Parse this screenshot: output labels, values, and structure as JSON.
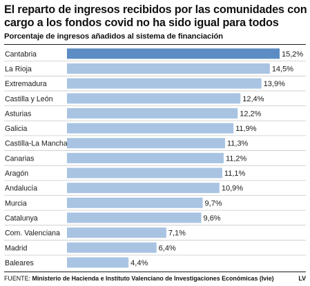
{
  "title": "El reparto de ingresos recibidos por las comunidades con cargo a los fondos covid no ha sido igual para todos",
  "subtitle": "Porcentaje de ingresos añadidos al sistema de financiación",
  "footer": {
    "source_label": "FUENTE:",
    "source_text": "Ministerio de Hacienda e Instituto Valenciano de Investigaciones Económicas (Ivie)",
    "credit": "LV"
  },
  "colors": {
    "highlight_bar": "#5b8cc3",
    "bar": "#a9c4e2",
    "row_line": "#c8c8c8"
  },
  "chart_data": {
    "type": "bar",
    "orientation": "horizontal",
    "categories": [
      "Cantabria",
      "La Rioja",
      "Extremadura",
      "Castilla y León",
      "Asturias",
      "Galicia",
      "Castilla-La Mancha",
      "Canarias",
      "Aragón",
      "Andalucía",
      "Murcia",
      "Catalunya",
      "Com. Valenciana",
      "Madrid",
      "Baleares"
    ],
    "values": [
      15.2,
      14.5,
      13.9,
      12.4,
      12.2,
      11.9,
      11.3,
      11.2,
      11.1,
      10.9,
      9.7,
      9.6,
      7.1,
      6.4,
      4.4
    ],
    "value_labels": [
      "15,2%",
      "14,5%",
      "13,9%",
      "12,4%",
      "12,2%",
      "11,9%",
      "11,3%",
      "11,2%",
      "11,1%",
      "10,9%",
      "9,7%",
      "9,6%",
      "7,1%",
      "6,4%",
      "4,4%"
    ],
    "highlight": "Cantabria",
    "xlim": [
      0,
      15.2
    ],
    "grid": false,
    "legend": "none"
  }
}
